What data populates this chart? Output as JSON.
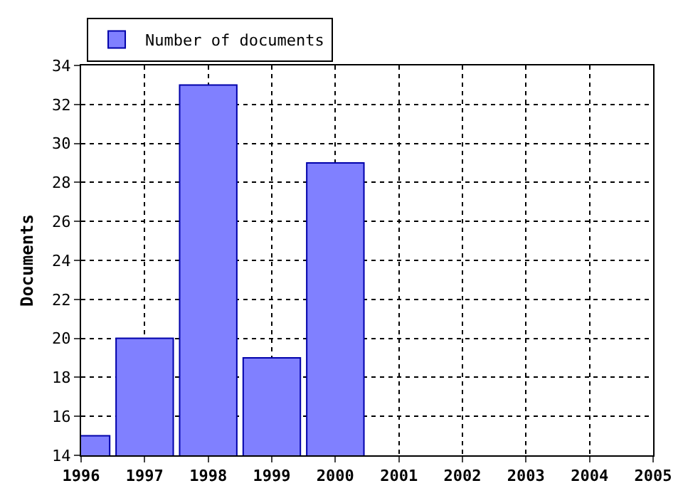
{
  "chart_data": {
    "type": "bar",
    "ylabel": "Documents",
    "x": [
      1996,
      1997,
      1998,
      1999,
      2000
    ],
    "series": [
      {
        "name": "Number of documents",
        "color": "#8080ff",
        "values": [
          15,
          20,
          33,
          19,
          29
        ]
      }
    ],
    "xlim": [
      1996,
      2005
    ],
    "xticks": [
      1996,
      1997,
      1998,
      1999,
      2000,
      2001,
      2002,
      2003,
      2004,
      2005
    ],
    "ylim": [
      14,
      34
    ],
    "yticks": [
      14,
      16,
      18,
      20,
      22,
      24,
      26,
      28,
      30,
      32,
      34
    ],
    "grid": true,
    "legend": "top left"
  }
}
